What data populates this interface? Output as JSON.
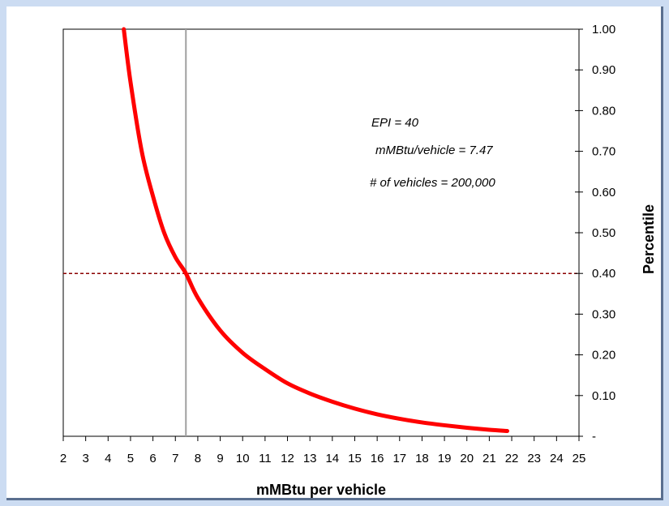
{
  "chart_data": {
    "type": "line",
    "title": "",
    "xlabel": "mMBtu per vehicle",
    "ylabel": "Percentile",
    "xlim": [
      2,
      25
    ],
    "ylim": [
      0,
      1
    ],
    "x_ticks": [
      2,
      3,
      4,
      5,
      6,
      7,
      8,
      9,
      10,
      11,
      12,
      13,
      14,
      15,
      16,
      17,
      18,
      19,
      20,
      21,
      22,
      23,
      24,
      25
    ],
    "y_tick_labels": [
      {
        "value": 0,
        "label": "-"
      },
      {
        "value": 0.1,
        "label": "0.10"
      },
      {
        "value": 0.2,
        "label": "0.20"
      },
      {
        "value": 0.3,
        "label": "0.30"
      },
      {
        "value": 0.4,
        "label": "0.40"
      },
      {
        "value": 0.5,
        "label": "0.50"
      },
      {
        "value": 0.6,
        "label": "0.60"
      },
      {
        "value": 0.7,
        "label": "0.70"
      },
      {
        "value": 0.8,
        "label": "0.80"
      },
      {
        "value": 0.9,
        "label": "0.90"
      },
      {
        "value": 1.0,
        "label": "1.00"
      }
    ],
    "y_axis_side": "right",
    "grid": false,
    "series": [
      {
        "color": "#ff0000",
        "x": [
          4.7,
          5.0,
          5.5,
          6.0,
          6.5,
          7.0,
          7.47,
          8.0,
          9.0,
          10.0,
          11.0,
          12.0,
          13.0,
          14.0,
          15.0,
          16.0,
          17.0,
          18.0,
          19.0,
          20.0,
          21.0,
          21.8
        ],
        "y": [
          1.0,
          0.87,
          0.7,
          0.59,
          0.5,
          0.44,
          0.4,
          0.34,
          0.26,
          0.205,
          0.165,
          0.13,
          0.105,
          0.085,
          0.068,
          0.054,
          0.043,
          0.034,
          0.027,
          0.021,
          0.016,
          0.013
        ]
      }
    ],
    "reference_lines": [
      {
        "orientation": "vertical",
        "value": 7.47,
        "color": "#a0a0a0",
        "style": "solid"
      },
      {
        "orientation": "horizontal",
        "value": 0.4,
        "color": "#8b0000",
        "style": "dashed"
      }
    ],
    "annotations": [
      "EPI = 40",
      "mMBtu/vehicle = 7.47",
      "# of vehicles = 200,000"
    ]
  }
}
